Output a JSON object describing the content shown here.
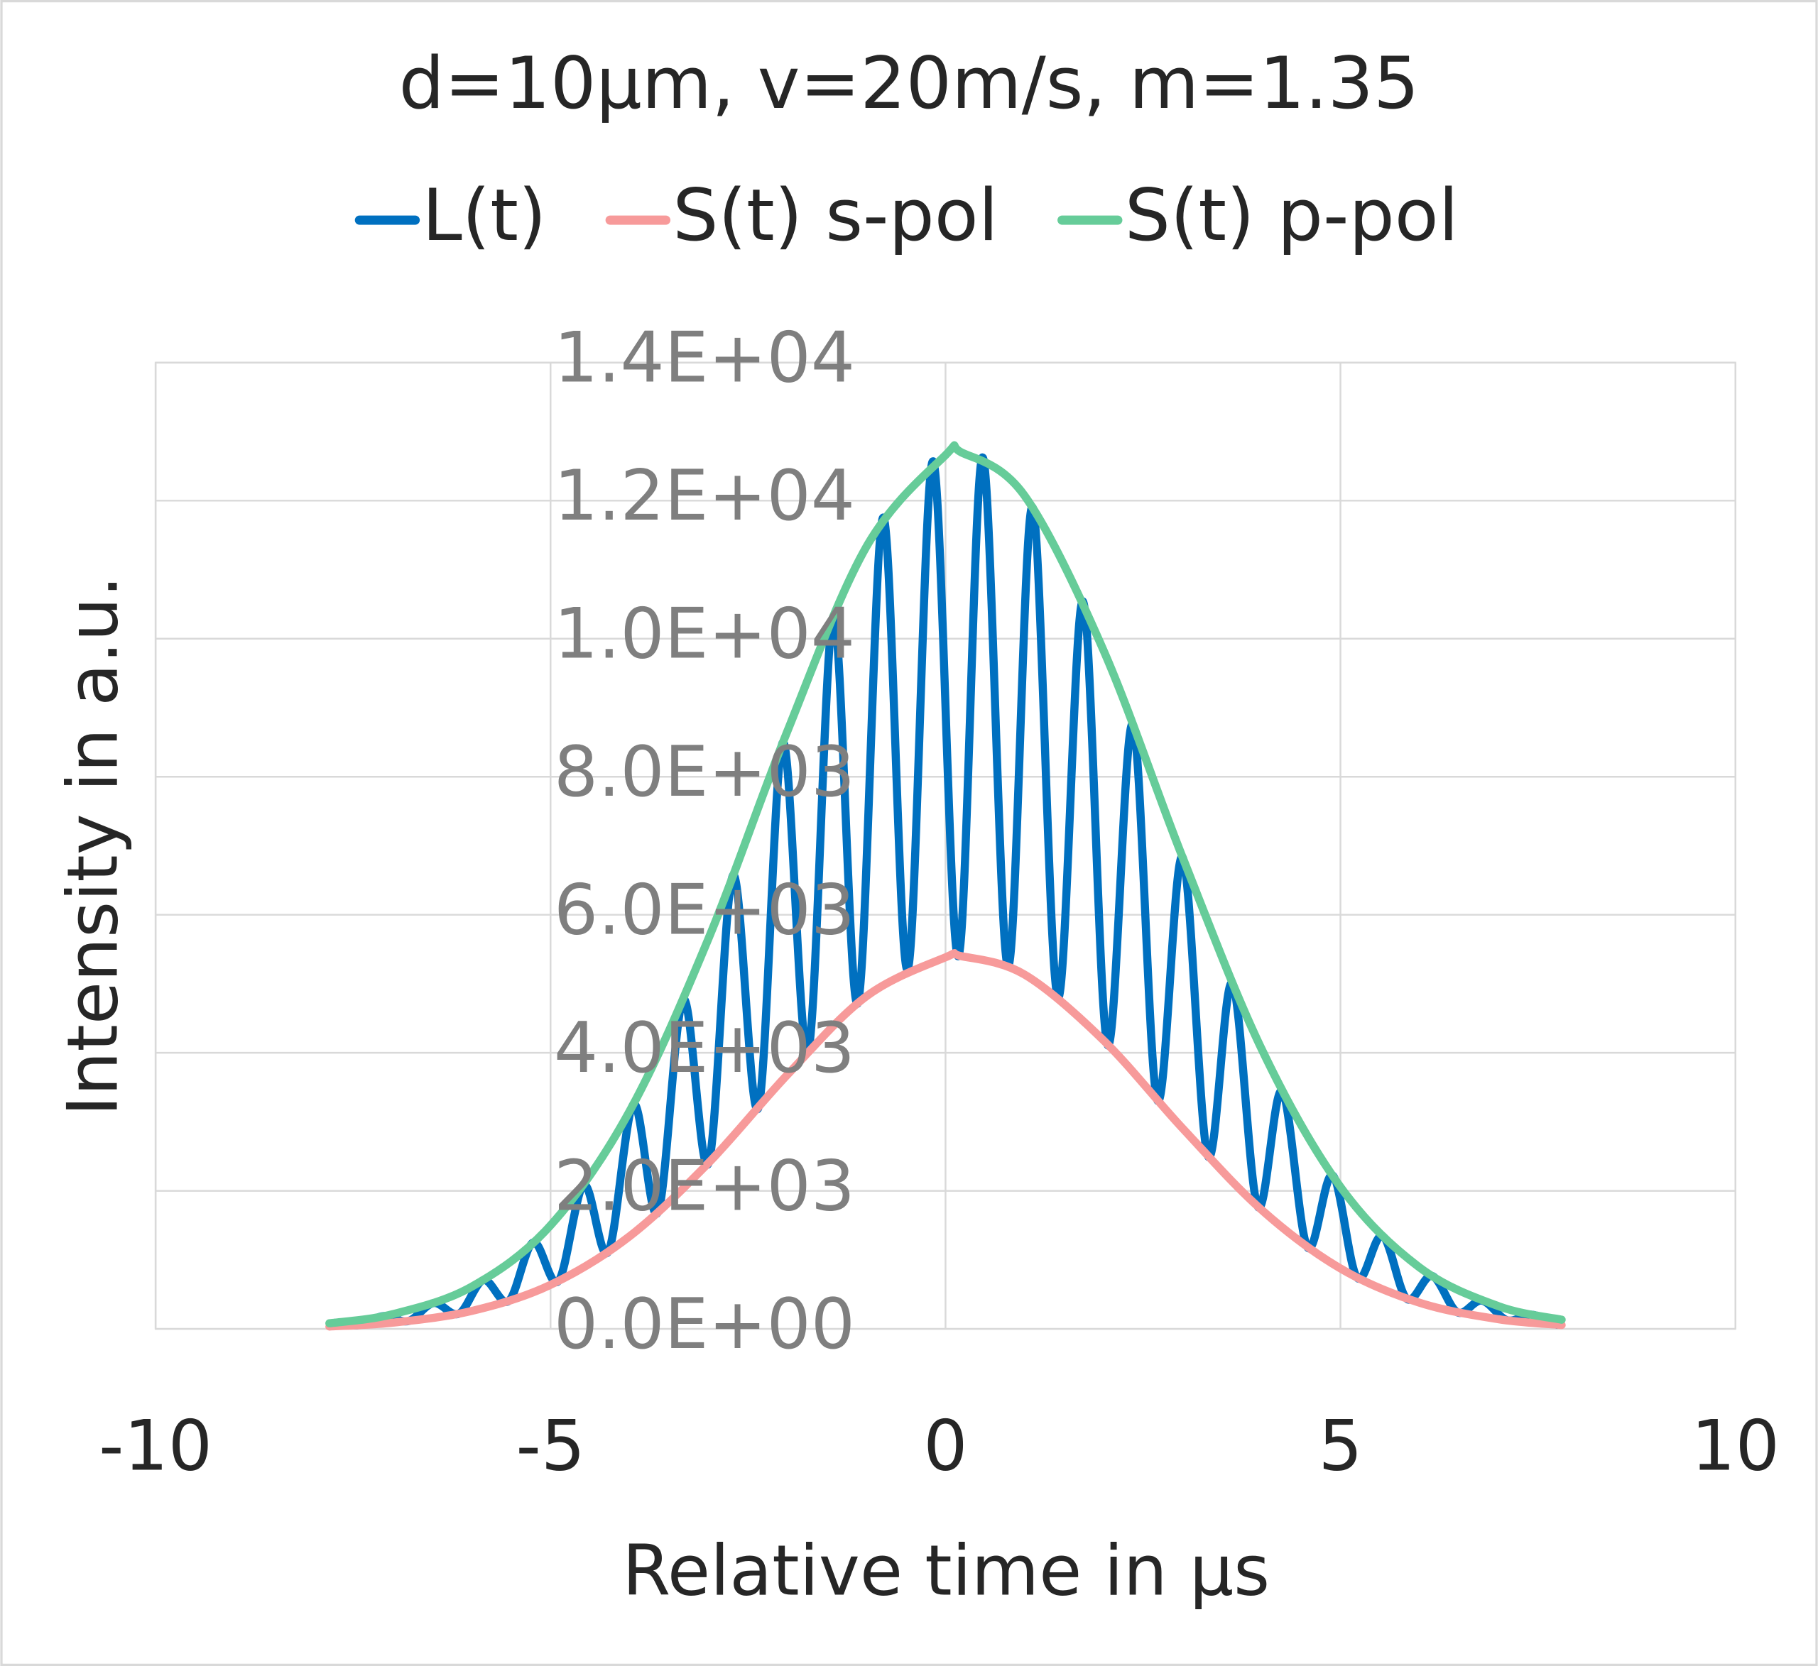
{
  "chart_data": {
    "type": "line",
    "title": "d=10µm, v=20m/s, m=1.35",
    "xlabel": "Relative time in µs",
    "ylabel": "Intensity in a.u.",
    "xlim": [
      -10,
      10
    ],
    "xticks": [
      -10,
      -5,
      0,
      5,
      10
    ],
    "ylim": [
      0,
      14000
    ],
    "yticks": [
      {
        "value": 0,
        "label": "0.0E+00"
      },
      {
        "value": 2000,
        "label": "2.0E+03"
      },
      {
        "value": 4000,
        "label": "4.0E+03"
      },
      {
        "value": 6000,
        "label": "6.0E+03"
      },
      {
        "value": 8000,
        "label": "8.0E+03"
      },
      {
        "value": 10000,
        "label": "1.0E+04"
      },
      {
        "value": 12000,
        "label": "1.2E+04"
      },
      {
        "value": 14000,
        "label": "1.4E+04"
      }
    ],
    "grid": true,
    "legend": "top",
    "series": [
      {
        "name": "L(t)",
        "color": "#0070c0",
        "x": [
          -7.74,
          -7.43,
          -7.11,
          -6.8,
          -6.48,
          -6.16,
          -5.85,
          -5.53,
          -5.22,
          -4.9,
          -4.58,
          -4.27,
          -3.95,
          -3.64,
          -3.32,
          -3.0,
          -2.69,
          -2.37,
          -2.06,
          -1.74,
          -1.42,
          -1.11,
          -0.79,
          -0.48,
          -0.16,
          0.16,
          0.47,
          0.79,
          1.1,
          1.42,
          1.74,
          2.05,
          2.37,
          2.68,
          3.0,
          3.32,
          3.63,
          3.95,
          4.26,
          4.58,
          4.9,
          5.21,
          5.53,
          5.84,
          6.16,
          6.48,
          6.79,
          7.11,
          7.42,
          7.74
        ],
        "values": [
          87,
          54,
          186,
          113,
          374,
          220,
          707,
          403,
          1252,
          692,
          2083,
          1116,
          3254,
          1690,
          4773,
          2399,
          6572,
          3201,
          8495,
          4012,
          10310,
          4717,
          11754,
          5209,
          12570,
          5399,
          12626,
          5255,
          11906,
          4801,
          10541,
          4119,
          8762,
          3317,
          6836,
          2508,
          5009,
          1780,
          3444,
          1187,
          2225,
          743,
          1347,
          436,
          767,
          240,
          410,
          125,
          206,
          60
        ]
      },
      {
        "name": "S(t) s-pol",
        "color": "#f79a9a",
        "x": [
          -7.8,
          -7,
          -6,
          -5,
          -4,
          -3,
          -2,
          -1,
          0,
          0.2,
          1,
          2,
          3,
          4,
          5,
          6,
          7,
          7.8
        ],
        "values": [
          34,
          90,
          259,
          638,
          1341,
          2405,
          3684,
          4820,
          5383,
          5400,
          5134,
          4181,
          2907,
          1726,
          875,
          379,
          140,
          56
        ]
      },
      {
        "name": "S(t) p-pol",
        "color": "#66cc99",
        "x": [
          -7.8,
          -7,
          -6,
          -5,
          -4,
          -3,
          -2,
          -1,
          0,
          0.2,
          1,
          2,
          3,
          4,
          5,
          6,
          7,
          7.8
        ],
        "values": [
          81,
          212,
          610,
          1500,
          3153,
          5657,
          8665,
          11335,
          12660,
          12700,
          12074,
          9832,
          6836,
          4059,
          2057,
          891,
          329,
          133
        ]
      }
    ]
  }
}
